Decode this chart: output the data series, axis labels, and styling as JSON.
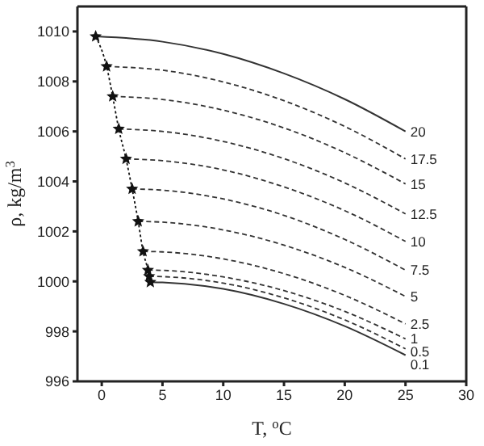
{
  "chart_data": {
    "type": "line",
    "xlabel": "T, $^{o}$C",
    "ylabel": "ρ, kg/m$^{3}$",
    "xlim": [
      -2,
      30
    ],
    "ylim": [
      996,
      1011
    ],
    "xticks": [
      0,
      5,
      10,
      15,
      20,
      25,
      30
    ],
    "yticks": [
      996,
      998,
      1000,
      1002,
      1004,
      1006,
      1008,
      1010
    ],
    "marker": "none",
    "series": [
      {
        "name": "20",
        "color": "#333333",
        "line_style": "solid",
        "x": [
          -0.5,
          5,
          10,
          15,
          20,
          25
        ],
        "values": [
          1009.8,
          1009.59,
          1009.1,
          1008.32,
          1007.29,
          1006.0
        ]
      },
      {
        "name": "17.5",
        "color": "#333333",
        "line_style": "dashed",
        "x": [
          0.4,
          5,
          10,
          15,
          20,
          25
        ],
        "values": [
          1008.6,
          1008.45,
          1007.98,
          1007.23,
          1006.2,
          1004.9
        ]
      },
      {
        "name": "15",
        "color": "#333333",
        "line_style": "dashed",
        "x": [
          0.9,
          5,
          10,
          15,
          20,
          25
        ],
        "values": [
          1007.4,
          1007.28,
          1006.85,
          1006.14,
          1005.15,
          1003.9
        ]
      },
      {
        "name": "12.5",
        "color": "#333333",
        "line_style": "dashed",
        "x": [
          1.4,
          5,
          10,
          15,
          20,
          25
        ],
        "values": [
          1006.1,
          1006.0,
          1005.6,
          1004.91,
          1003.94,
          1002.7
        ]
      },
      {
        "name": "10",
        "color": "#333333",
        "line_style": "dashed",
        "x": [
          2.0,
          5,
          10,
          15,
          20,
          25
        ],
        "values": [
          1004.9,
          1004.83,
          1004.46,
          1003.78,
          1002.83,
          1001.6
        ]
      },
      {
        "name": "7.5",
        "color": "#333333",
        "line_style": "dashed",
        "x": [
          2.5,
          5,
          10,
          15,
          20,
          25
        ],
        "values": [
          1003.7,
          1003.65,
          1003.3,
          1002.64,
          1001.68,
          1000.45
        ]
      },
      {
        "name": "5",
        "color": "#333333",
        "line_style": "dashed",
        "x": [
          3.0,
          5,
          10,
          15,
          20,
          25
        ],
        "values": [
          1002.4,
          1002.37,
          1002.06,
          1001.45,
          1000.56,
          999.4
        ]
      },
      {
        "name": "2.5",
        "color": "#333333",
        "line_style": "dashed",
        "x": [
          3.4,
          5,
          10,
          15,
          20,
          25
        ],
        "values": [
          1001.2,
          1001.18,
          1000.9,
          1000.31,
          999.44,
          998.3
        ]
      },
      {
        "name": "1",
        "color": "#333333",
        "line_style": "dashed",
        "x": [
          3.8,
          5,
          10,
          15,
          20,
          25
        ],
        "values": [
          1000.45,
          1000.44,
          1000.18,
          999.63,
          998.8,
          997.7
        ]
      },
      {
        "name": "0.5",
        "color": "#333333",
        "line_style": "dashed",
        "x": [
          3.9,
          5,
          10,
          15,
          20,
          25
        ],
        "values": [
          1000.2,
          1000.19,
          999.93,
          999.34,
          998.46,
          997.3
        ]
      },
      {
        "name": "0.1",
        "color": "#333333",
        "line_style": "solid",
        "x": [
          4.0,
          5,
          10,
          15,
          20,
          25
        ],
        "values": [
          999.97,
          999.96,
          999.7,
          999.1,
          998.21,
          997.05
        ]
      },
      {
        "color": "#111111",
        "line_style": "dotted",
        "marker": "star",
        "x": [
          -0.5,
          0.4,
          0.9,
          1.4,
          2.0,
          2.5,
          3.0,
          3.4,
          3.8,
          3.9,
          4.0
        ],
        "values": [
          1009.8,
          1008.6,
          1007.4,
          1006.1,
          1004.9,
          1003.7,
          1002.4,
          1001.2,
          1000.45,
          1000.2,
          999.97
        ]
      }
    ]
  }
}
